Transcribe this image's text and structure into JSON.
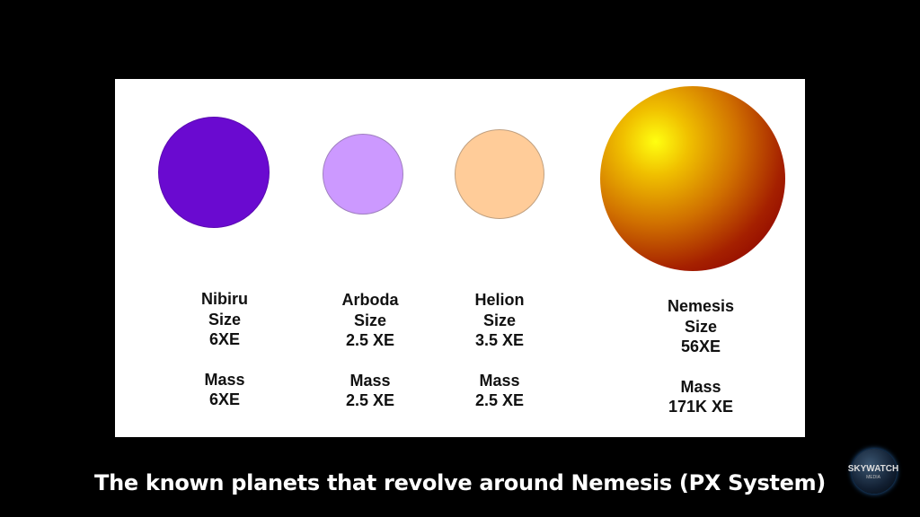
{
  "planets": [
    {
      "name": "Nibiru",
      "size_label": "Size",
      "size": "6XE",
      "mass_label": "Mass",
      "mass": "6XE",
      "color": "#6a0ad0"
    },
    {
      "name": "Arboda",
      "size_label": "Size",
      "size": "2.5 XE",
      "mass_label": "Mass",
      "mass": "2.5 XE",
      "color": "#cc99ff"
    },
    {
      "name": "Helion",
      "size_label": "Size",
      "size": "3.5 XE",
      "mass_label": "Mass",
      "mass": "2.5 XE",
      "color": "#ffcc99"
    },
    {
      "name": "Nemesis",
      "size_label": "Size",
      "size": "56XE",
      "mass_label": "Mass",
      "mass": "171K XE",
      "color": "#8b0000"
    }
  ],
  "caption": "The known planets that revolve around Nemesis (PX System)",
  "logo": {
    "title": "SKYWATCH",
    "subtitle": "MEDIA"
  }
}
